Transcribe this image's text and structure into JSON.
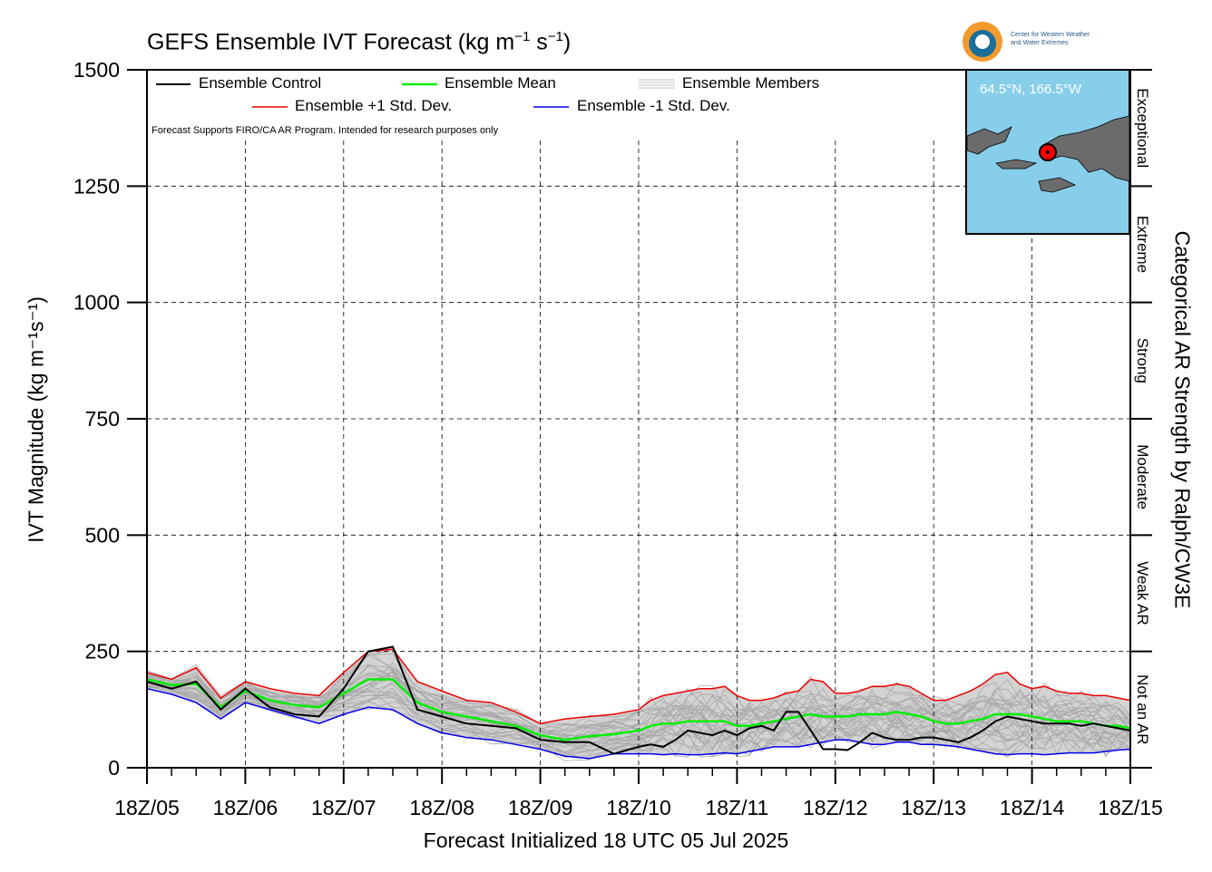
{
  "title_text": "GEFS Ensemble IVT Forecast (kg m",
  "title_sup1": "−1",
  "title_mid": " s",
  "title_sup2": "−1",
  "title_end": ")",
  "logo": {
    "line1": "Center for Western Weather",
    "line2": "and Water Extremes"
  },
  "inset_map": {
    "location": "64.5°N, 166.5°W",
    "land_color": "#6b6b6b",
    "ocean_color": "#87ceeb",
    "marker_color": "#ff0000"
  },
  "legend": {
    "control": "Ensemble Control",
    "mean": "Ensemble Mean",
    "members": "Ensemble Members",
    "plus_sd": "Ensemble +1 Std. Dev.",
    "minus_sd": "Ensemble -1 Std. Dev."
  },
  "note": "Forecast Supports FIRO/CA AR Program. Intended for research purposes only",
  "xlabel": "Forecast Initialized 18 UTC 05 Jul 2025",
  "ylabel": "IVT Magnitude (kg m⁻¹s⁻¹)",
  "right_label": "Categorical AR Strength by Ralph/CW3E",
  "categories": [
    "Not an AR",
    "Weak AR",
    "Moderate",
    "Strong",
    "Extreme",
    "Exceptional"
  ],
  "colors": {
    "control": "#000000",
    "mean": "#00ee00",
    "plus_sd": "#ee0000",
    "minus_sd": "#0000ee",
    "members": "#a8a8a8",
    "spread_fill": "#d3d3d3"
  },
  "chart_data": {
    "type": "line",
    "x_unit": "forecast hours after 18Z 05 Jul 2025 (6-hourly)",
    "xticks": [
      "18Z/05",
      "18Z/06",
      "18Z/07",
      "18Z/08",
      "18Z/09",
      "18Z/10",
      "18Z/11",
      "18Z/12",
      "18Z/13",
      "18Z/14",
      "18Z/15"
    ],
    "ylim": [
      0,
      1500
    ],
    "yticks": [
      0,
      250,
      500,
      750,
      1000,
      1250,
      1500
    ],
    "grid": true,
    "legend_position": "top",
    "x": [
      0,
      6,
      12,
      18,
      24,
      30,
      36,
      42,
      48,
      54,
      60,
      66,
      72,
      78,
      84,
      90,
      96,
      102,
      108,
      114,
      120,
      126,
      132,
      138,
      144,
      150,
      156,
      162,
      168,
      174,
      180,
      186,
      192,
      198,
      204,
      210,
      216,
      222,
      228,
      234,
      240
    ],
    "series": [
      {
        "name": "Ensemble Control",
        "values": [
          185,
          170,
          170,
          150,
          185,
          155,
          125,
          150,
          170,
          150,
          130,
          125,
          115,
          130,
          110,
          150,
          170,
          200,
          250,
          262,
          260,
          165,
          125,
          130,
          110,
          90,
          95,
          105,
          90,
          85,
          85,
          70,
          60,
          60,
          55,
          55,
          55,
          35,
          30,
          35,
          45
        ]
      },
      {
        "name": "Ensemble Mean",
        "values": [
          190,
          175,
          178,
          160,
          180,
          150,
          130,
          145,
          165,
          155,
          145,
          140,
          135,
          130,
          130,
          145,
          160,
          180,
          190,
          200,
          190,
          160,
          140,
          130,
          120,
          115,
          110,
          105,
          100,
          95,
          90,
          80,
          70,
          65,
          60,
          65,
          68,
          70,
          72,
          75,
          80
        ]
      },
      {
        "name": "Ensemble +1 Std. Dev.",
        "values": [
          205,
          185,
          190,
          175,
          215,
          170,
          150,
          165,
          185,
          180,
          170,
          165,
          160,
          155,
          155,
          180,
          205,
          230,
          250,
          260,
          255,
          210,
          185,
          175,
          165,
          150,
          145,
          150,
          140,
          130,
          120,
          100,
          95,
          100,
          105,
          110,
          110,
          110,
          115,
          120,
          125
        ]
      },
      {
        "name": "Ensemble -1 Std. Dev.",
        "values": [
          170,
          160,
          158,
          140,
          140,
          115,
          105,
          120,
          140,
          130,
          125,
          120,
          110,
          100,
          95,
          105,
          115,
          125,
          130,
          130,
          125,
          110,
          95,
          85,
          75,
          70,
          65,
          65,
          60,
          55,
          50,
          45,
          40,
          35,
          25,
          20,
          20,
          25,
          30,
          30,
          30
        ]
      }
    ],
    "series_tail": [
      {
        "name": "Ensemble Control",
        "values": [
          50,
          50,
          45,
          60,
          80,
          75,
          70,
          80,
          70,
          85,
          90,
          80,
          120,
          120,
          80,
          40,
          40,
          38,
          55,
          75,
          65,
          60,
          60,
          65,
          65,
          60,
          55,
          65,
          80,
          100,
          110,
          105,
          100,
          95,
          95,
          95,
          90,
          95,
          90,
          85,
          80
        ]
      },
      {
        "name": "Ensemble Mean",
        "values": [
          85,
          90,
          95,
          95,
          100,
          100,
          100,
          100,
          90,
          90,
          95,
          100,
          105,
          110,
          115,
          110,
          110,
          110,
          115,
          115,
          115,
          120,
          115,
          110,
          100,
          95,
          95,
          100,
          105,
          115,
          115,
          115,
          110,
          105,
          100,
          100,
          100,
          95,
          90,
          90,
          85
        ]
      },
      {
        "name": "Ensemble +1 Std. Dev.",
        "values": [
          130,
          145,
          155,
          160,
          165,
          170,
          170,
          175,
          155,
          145,
          145,
          150,
          160,
          165,
          190,
          185,
          160,
          160,
          165,
          175,
          175,
          180,
          175,
          160,
          145,
          145,
          155,
          165,
          180,
          200,
          205,
          180,
          170,
          175,
          165,
          160,
          160,
          155,
          155,
          150,
          145
        ]
      },
      {
        "name": "Ensemble -1 Std. Dev.",
        "values": [
          30,
          30,
          28,
          30,
          28,
          28,
          30,
          32,
          30,
          35,
          40,
          45,
          45,
          45,
          50,
          55,
          60,
          60,
          55,
          50,
          50,
          55,
          55,
          50,
          50,
          48,
          45,
          40,
          35,
          30,
          28,
          30,
          30,
          28,
          30,
          32,
          32,
          32,
          35,
          38,
          40
        ]
      }
    ]
  }
}
